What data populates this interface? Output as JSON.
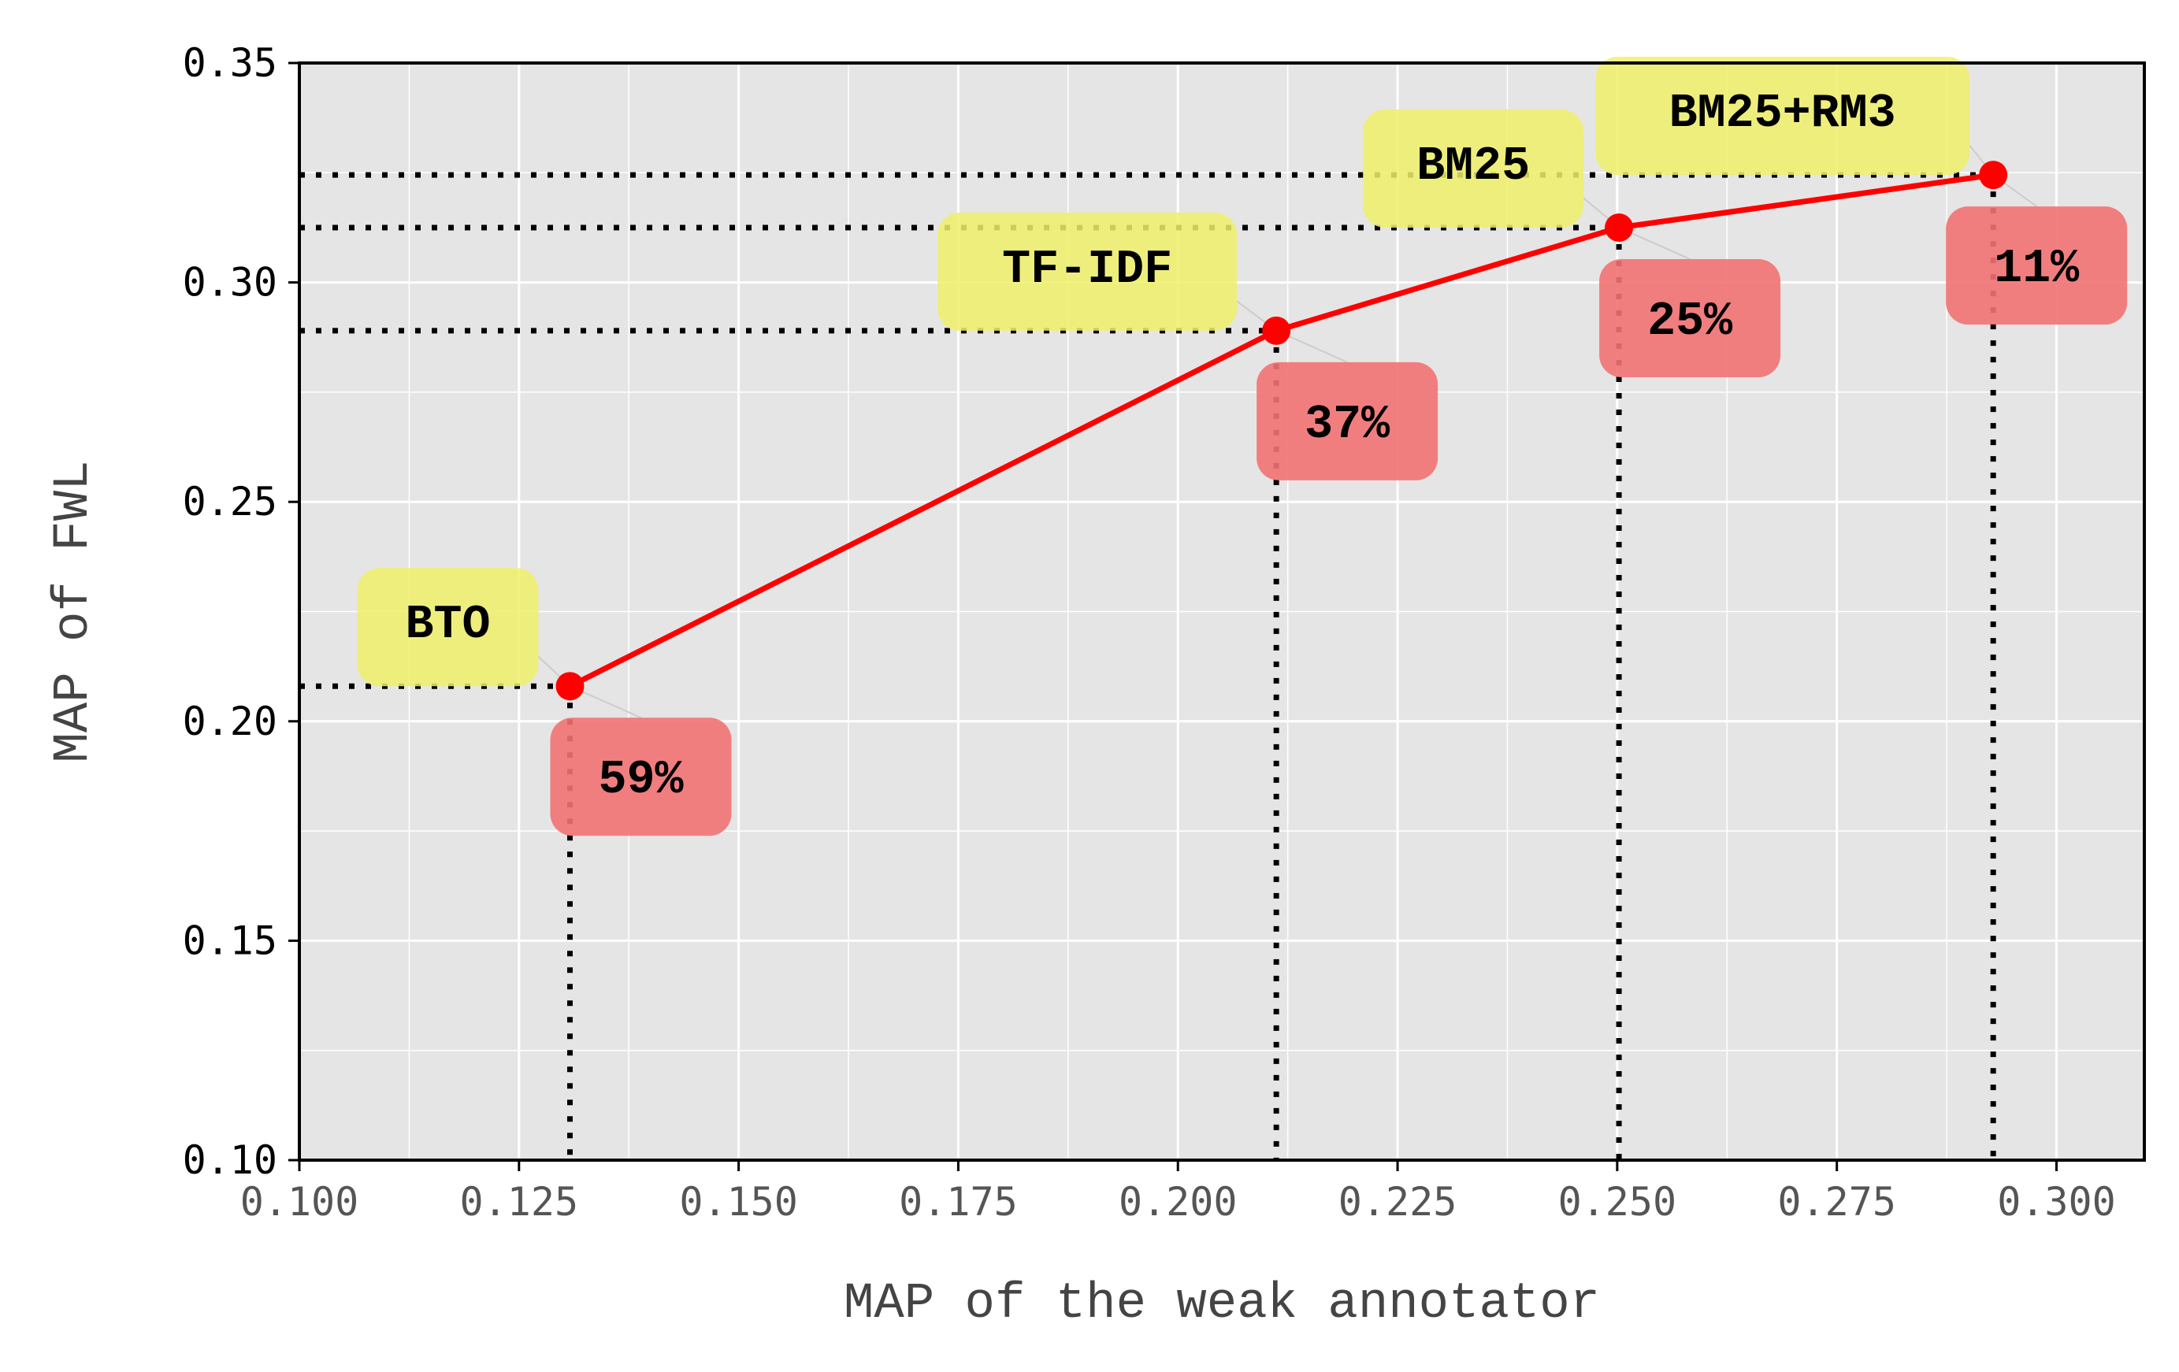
{
  "chart_data": {
    "type": "line",
    "title": "",
    "xlabel": "MAP of the weak annotator",
    "ylabel": "MAP of FWL",
    "xlim": [
      0.1,
      0.31
    ],
    "ylim": [
      0.1,
      0.35
    ],
    "xticks": [
      "0.100",
      "0.125",
      "0.150",
      "0.175",
      "0.200",
      "0.225",
      "0.250",
      "0.275",
      "0.300"
    ],
    "yticks": [
      "0.10",
      "0.15",
      "0.20",
      "0.25",
      "0.30",
      "0.35"
    ],
    "grid": true,
    "series": [
      {
        "color": "#ff0000",
        "points": [
          {
            "x": 0.1308,
            "y": 0.208,
            "method": "BTO",
            "percent": "59%"
          },
          {
            "x": 0.2112,
            "y": 0.289,
            "method": "TF-IDF",
            "percent": "37%"
          },
          {
            "x": 0.2502,
            "y": 0.3125,
            "method": "BM25",
            "percent": "25%"
          },
          {
            "x": 0.2928,
            "y": 0.3245,
            "method": "BM25+RM3",
            "percent": "11%"
          }
        ]
      }
    ],
    "colors": {
      "plot_background": "#e5e5e5",
      "grid": "#ffffff",
      "line": "#ff0000",
      "method_box": "#f0f06a",
      "percent_box": "#f27272"
    }
  }
}
